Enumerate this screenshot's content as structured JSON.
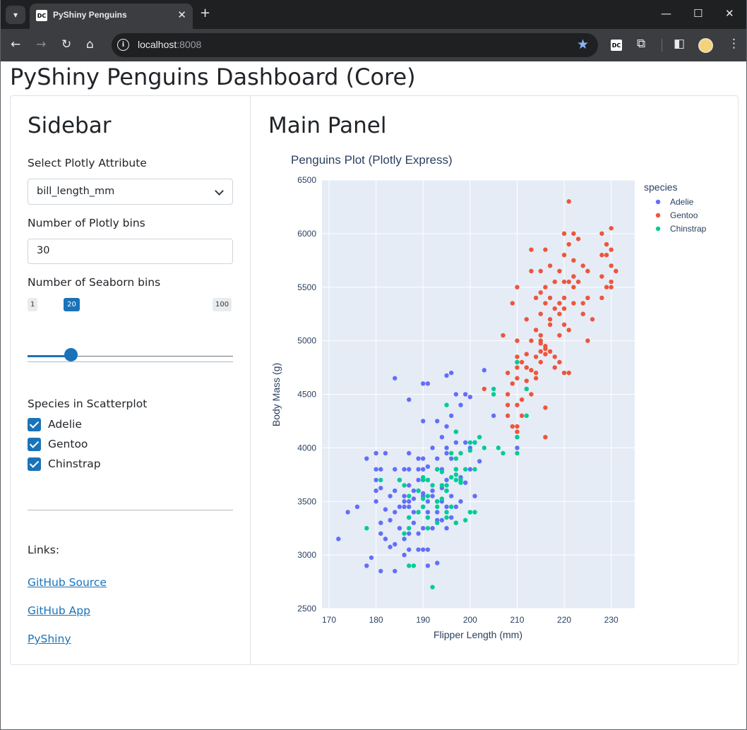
{
  "browser": {
    "tab_title": "PyShiny Penguins",
    "favicon_text": "DC",
    "url_host": "localhost",
    "url_port": ":8008",
    "extension_text": "DC"
  },
  "page": {
    "title": "PyShiny Penguins Dashboard (Core)"
  },
  "sidebar": {
    "title": "Sidebar",
    "select_label": "Select Plotly Attribute",
    "select_value": "bill_length_mm",
    "plotly_bins_label": "Number of Plotly bins",
    "plotly_bins_value": "30",
    "seaborn_bins_label": "Number of Seaborn bins",
    "slider_min": "1",
    "slider_max": "100",
    "slider_value": "20",
    "species_label": "Species in Scatterplot",
    "species": [
      {
        "label": "Adelie",
        "checked": true
      },
      {
        "label": "Gentoo",
        "checked": true
      },
      {
        "label": "Chinstrap",
        "checked": true
      }
    ],
    "links_label": "Links:",
    "links": [
      "GitHub Source",
      "GitHub App",
      "PyShiny"
    ]
  },
  "main": {
    "title": "Main Panel"
  },
  "colors": {
    "accent": "#1a73b8",
    "adelie": "#636efa",
    "gentoo": "#ef553b",
    "chinstrap": "#00cc96",
    "plot_bg": "#e5ecf6"
  },
  "chart_data": {
    "type": "scatter",
    "title": "Penguins Plot (Plotly Express)",
    "xlabel": "Flipper Length (mm)",
    "ylabel": "Body Mass (g)",
    "xlim": [
      168.5,
      235
    ],
    "ylim": [
      2500,
      6500
    ],
    "xticks": [
      170,
      180,
      190,
      200,
      210,
      220,
      230
    ],
    "yticks": [
      2500,
      3000,
      3500,
      4000,
      4500,
      5000,
      5500,
      6000,
      6500
    ],
    "legend_title": "species",
    "legend_position": "right",
    "grid": true,
    "series": [
      {
        "name": "Adelie",
        "color": "#636efa",
        "points": [
          [
            172,
            3150
          ],
          [
            174,
            3400
          ],
          [
            176,
            3450
          ],
          [
            178,
            3900
          ],
          [
            178,
            2900
          ],
          [
            179,
            2975
          ],
          [
            180,
            3600
          ],
          [
            180,
            3700
          ],
          [
            180,
            3800
          ],
          [
            180,
            3950
          ],
          [
            180,
            3500
          ],
          [
            181,
            3800
          ],
          [
            181,
            3625
          ],
          [
            181,
            3300
          ],
          [
            181,
            3200
          ],
          [
            181,
            2850
          ],
          [
            182,
            3950
          ],
          [
            182,
            3150
          ],
          [
            182,
            3425
          ],
          [
            183,
            3325
          ],
          [
            183,
            3550
          ],
          [
            183,
            3075
          ],
          [
            184,
            3800
          ],
          [
            184,
            3400
          ],
          [
            184,
            3100
          ],
          [
            184,
            3600
          ],
          [
            184,
            4650
          ],
          [
            184,
            2850
          ],
          [
            185,
            3700
          ],
          [
            185,
            3450
          ],
          [
            185,
            3700
          ],
          [
            185,
            3250
          ],
          [
            186,
            3800
          ],
          [
            186,
            3550
          ],
          [
            186,
            3450
          ],
          [
            186,
            3000
          ],
          [
            186,
            3150
          ],
          [
            186,
            3500
          ],
          [
            187,
            3800
          ],
          [
            187,
            3650
          ],
          [
            187,
            3450
          ],
          [
            187,
            3350
          ],
          [
            187,
            3200
          ],
          [
            187,
            3050
          ],
          [
            187,
            3500
          ],
          [
            187,
            3950
          ],
          [
            187,
            4450
          ],
          [
            188,
            3600
          ],
          [
            188,
            3300
          ],
          [
            188,
            3525
          ],
          [
            188,
            3400
          ],
          [
            189,
            3400
          ],
          [
            189,
            3800
          ],
          [
            189,
            3200
          ],
          [
            189,
            3600
          ],
          [
            189,
            3700
          ],
          [
            189,
            3050
          ],
          [
            189,
            3900
          ],
          [
            190,
            3900
          ],
          [
            190,
            3450
          ],
          [
            190,
            3800
          ],
          [
            190,
            3250
          ],
          [
            190,
            3575
          ],
          [
            190,
            3050
          ],
          [
            190,
            4250
          ],
          [
            190,
            4600
          ],
          [
            190,
            3700
          ],
          [
            190,
            3550
          ],
          [
            191,
            3500
          ],
          [
            191,
            3350
          ],
          [
            191,
            3700
          ],
          [
            191,
            3825
          ],
          [
            191,
            3400
          ],
          [
            191,
            3050
          ],
          [
            191,
            2900
          ],
          [
            191,
            4600
          ],
          [
            192,
            3600
          ],
          [
            192,
            4000
          ],
          [
            192,
            3550
          ],
          [
            192,
            3250
          ],
          [
            193,
            3500
          ],
          [
            193,
            3400
          ],
          [
            193,
            3900
          ],
          [
            193,
            3800
          ],
          [
            193,
            3325
          ],
          [
            193,
            2925
          ],
          [
            193,
            4250
          ],
          [
            194,
            3625
          ],
          [
            194,
            3800
          ],
          [
            194,
            3325
          ],
          [
            194,
            3500
          ],
          [
            194,
            4100
          ],
          [
            195,
            3600
          ],
          [
            195,
            3700
          ],
          [
            195,
            3450
          ],
          [
            195,
            3250
          ],
          [
            195,
            4200
          ],
          [
            195,
            4000
          ],
          [
            195,
            3950
          ],
          [
            195,
            4675
          ],
          [
            196,
            3550
          ],
          [
            196,
            4300
          ],
          [
            196,
            3900
          ],
          [
            196,
            4700
          ],
          [
            196,
            3350
          ],
          [
            197,
            3800
          ],
          [
            197,
            3450
          ],
          [
            197,
            4150
          ],
          [
            197,
            4500
          ],
          [
            197,
            4050
          ],
          [
            197,
            3300
          ],
          [
            198,
            4400
          ],
          [
            198,
            3500
          ],
          [
            198,
            3725
          ],
          [
            199,
            4500
          ],
          [
            199,
            3675
          ],
          [
            199,
            4050
          ],
          [
            200,
            4475
          ],
          [
            200,
            3800
          ],
          [
            200,
            4000
          ],
          [
            201,
            4050
          ],
          [
            201,
            3550
          ],
          [
            202,
            3875
          ],
          [
            203,
            4725
          ],
          [
            205,
            4300
          ],
          [
            210,
            4000
          ]
        ]
      },
      {
        "name": "Gentoo",
        "color": "#ef553b",
        "points": [
          [
            203,
            4550
          ],
          [
            207,
            5050
          ],
          [
            208,
            4400
          ],
          [
            208,
            4700
          ],
          [
            208,
            4300
          ],
          [
            208,
            4500
          ],
          [
            209,
            5350
          ],
          [
            209,
            4600
          ],
          [
            209,
            4200
          ],
          [
            210,
            5000
          ],
          [
            210,
            4850
          ],
          [
            210,
            4800
          ],
          [
            210,
            4750
          ],
          [
            210,
            4650
          ],
          [
            210,
            4400
          ],
          [
            210,
            4200
          ],
          [
            210,
            4100
          ],
          [
            210,
            4150
          ],
          [
            210,
            5500
          ],
          [
            211,
            4800
          ],
          [
            211,
            4450
          ],
          [
            211,
            4300
          ],
          [
            212,
            5200
          ],
          [
            212,
            4875
          ],
          [
            212,
            4625
          ],
          [
            212,
            4550
          ],
          [
            212,
            4750
          ],
          [
            213,
            5650
          ],
          [
            213,
            5000
          ],
          [
            213,
            4725
          ],
          [
            213,
            4500
          ],
          [
            213,
            5850
          ],
          [
            214,
            5100
          ],
          [
            214,
            4850
          ],
          [
            214,
            4700
          ],
          [
            214,
            4650
          ],
          [
            214,
            5400
          ],
          [
            215,
            5450
          ],
          [
            215,
            5250
          ],
          [
            215,
            5050
          ],
          [
            215,
            5000
          ],
          [
            215,
            4975
          ],
          [
            215,
            4800
          ],
          [
            215,
            4900
          ],
          [
            215,
            5650
          ],
          [
            216,
            4925
          ],
          [
            216,
            5500
          ],
          [
            216,
            5350
          ],
          [
            216,
            4950
          ],
          [
            216,
            4100
          ],
          [
            216,
            4875
          ],
          [
            216,
            4375
          ],
          [
            216,
            5850
          ],
          [
            217,
            5200
          ],
          [
            217,
            5150
          ],
          [
            217,
            4900
          ],
          [
            217,
            5400
          ],
          [
            217,
            5700
          ],
          [
            218,
            5300
          ],
          [
            218,
            4850
          ],
          [
            218,
            4750
          ],
          [
            218,
            5550
          ],
          [
            219,
            5250
          ],
          [
            219,
            5350
          ],
          [
            219,
            5050
          ],
          [
            219,
            5650
          ],
          [
            219,
            4800
          ],
          [
            220,
            5400
          ],
          [
            220,
            5800
          ],
          [
            220,
            5550
          ],
          [
            220,
            4700
          ],
          [
            220,
            5150
          ],
          [
            220,
            6000
          ],
          [
            220,
            5300
          ],
          [
            221,
            5100
          ],
          [
            221,
            5900
          ],
          [
            221,
            6300
          ],
          [
            221,
            4700
          ],
          [
            221,
            5550
          ],
          [
            222,
            5500
          ],
          [
            222,
            5600
          ],
          [
            222,
            5750
          ],
          [
            222,
            6000
          ],
          [
            222,
            5350
          ],
          [
            223,
            5950
          ],
          [
            223,
            5550
          ],
          [
            224,
            5700
          ],
          [
            224,
            5250
          ],
          [
            224,
            5350
          ],
          [
            225,
            5400
          ],
          [
            225,
            5650
          ],
          [
            225,
            5000
          ],
          [
            226,
            5200
          ],
          [
            228,
            5400
          ],
          [
            228,
            5600
          ],
          [
            228,
            6000
          ],
          [
            228,
            5800
          ],
          [
            229,
            5900
          ],
          [
            229,
            5500
          ],
          [
            229,
            5800
          ],
          [
            230,
            5700
          ],
          [
            230,
            5850
          ],
          [
            230,
            6050
          ],
          [
            230,
            5550
          ],
          [
            230,
            5500
          ],
          [
            231,
            5650
          ]
        ]
      },
      {
        "name": "Chinstrap",
        "color": "#00cc96",
        "points": [
          [
            178,
            3250
          ],
          [
            181,
            3700
          ],
          [
            185,
            3700
          ],
          [
            186,
            3650
          ],
          [
            186,
            3200
          ],
          [
            187,
            3550
          ],
          [
            187,
            3350
          ],
          [
            187,
            3250
          ],
          [
            187,
            2900
          ],
          [
            188,
            2900
          ],
          [
            189,
            3400
          ],
          [
            189,
            3600
          ],
          [
            190,
            3700
          ],
          [
            190,
            3525
          ],
          [
            190,
            3450
          ],
          [
            190,
            3725
          ],
          [
            191,
            3550
          ],
          [
            191,
            3350
          ],
          [
            191,
            3250
          ],
          [
            191,
            3700
          ],
          [
            192,
            2700
          ],
          [
            192,
            3650
          ],
          [
            193,
            3300
          ],
          [
            193,
            3450
          ],
          [
            193,
            3800
          ],
          [
            193,
            3500
          ],
          [
            194,
            3650
          ],
          [
            194,
            3525
          ],
          [
            194,
            3775
          ],
          [
            195,
            3400
          ],
          [
            195,
            3650
          ],
          [
            195,
            3350
          ],
          [
            195,
            4400
          ],
          [
            195,
            3600
          ],
          [
            196,
            3725
          ],
          [
            196,
            3450
          ],
          [
            196,
            3950
          ],
          [
            197,
            3800
          ],
          [
            197,
            3300
          ],
          [
            197,
            3750
          ],
          [
            197,
            4150
          ],
          [
            197,
            3900
          ],
          [
            197,
            3700
          ],
          [
            198,
            3675
          ],
          [
            198,
            3700
          ],
          [
            198,
            3950
          ],
          [
            199,
            3325
          ],
          [
            199,
            3800
          ],
          [
            200,
            3400
          ],
          [
            200,
            3975
          ],
          [
            200,
            4050
          ],
          [
            201,
            4050
          ],
          [
            201,
            3800
          ],
          [
            201,
            3400
          ],
          [
            202,
            4100
          ],
          [
            203,
            4000
          ],
          [
            205,
            4550
          ],
          [
            205,
            4500
          ],
          [
            206,
            4000
          ],
          [
            207,
            3950
          ],
          [
            210,
            4800
          ],
          [
            210,
            3950
          ],
          [
            210,
            4100
          ],
          [
            212,
            4300
          ],
          [
            212,
            4550
          ]
        ]
      }
    ]
  }
}
